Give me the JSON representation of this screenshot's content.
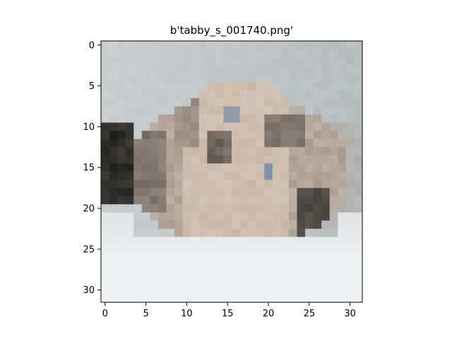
{
  "figure": {
    "title": "b'tabby_s_001740.png'"
  },
  "image": {
    "width": 32,
    "height": 32,
    "subject": "pixelated tabby cat lying in a white bowl"
  },
  "axes": {
    "x_ticks": [
      0,
      5,
      10,
      15,
      20,
      25,
      30
    ],
    "y_ticks": [
      0,
      5,
      10,
      15,
      20,
      25,
      30
    ],
    "x_range": [
      -0.5,
      31.5
    ],
    "y_range": [
      31.5,
      -0.5
    ]
  },
  "colors": {
    "background_top": "#c7ccce",
    "background_right": "#b2b9bd",
    "bowl": "#eef1f3",
    "fur_light": "#c9b7a6",
    "fur_mid": "#a89a8d",
    "fur_dark": "#5f5650",
    "shadow_dark": "#1d1f1b",
    "eye_blue": "#7f93a8"
  }
}
